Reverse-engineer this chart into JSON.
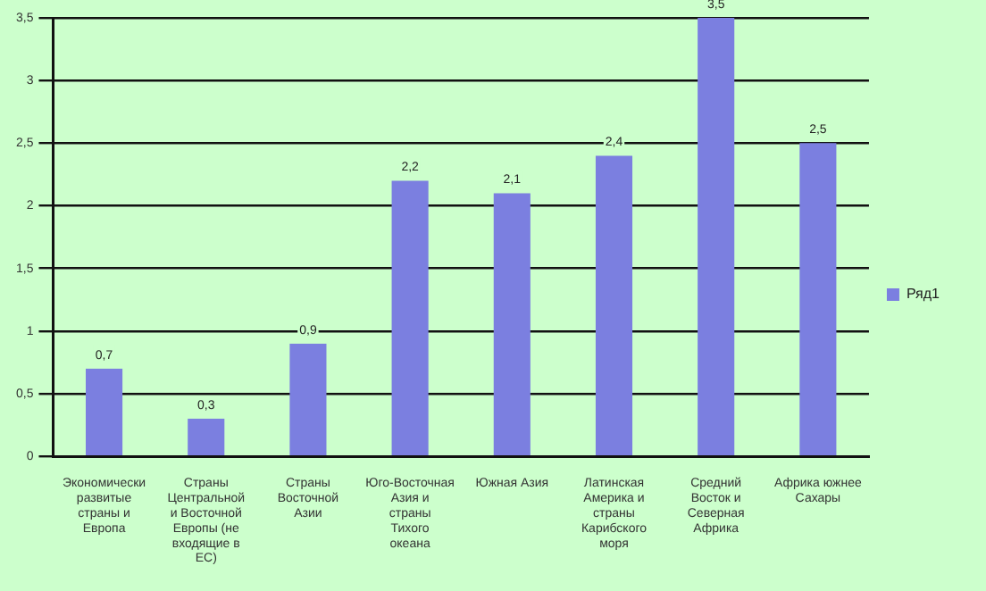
{
  "chart_data": {
    "type": "bar",
    "categories": [
      "Экономически развитые страны и Европа",
      "Страны Центральной и Восточной Европы (не входящие в ЕС)",
      "Страны Восточной Азии",
      "Юго-Восточная Азия и страны Тихого океана",
      "Южная Азия",
      "Латинская Америка и страны Карибского моря",
      "Средний Восток и Северная Африка",
      "Африка южнее Сахары"
    ],
    "series": [
      {
        "name": "Ряд1",
        "color": "#7b7fe0",
        "values": [
          0.7,
          0.3,
          0.9,
          2.2,
          2.1,
          2.4,
          3.5,
          2.5
        ],
        "value_labels": [
          "0,7",
          "0,3",
          "0,9",
          "2,2",
          "2,1",
          "2,4",
          "3,5",
          "2,5"
        ]
      }
    ],
    "ylim": [
      0,
      3.5
    ],
    "yticks": [
      0,
      {
        "value": 0.5,
        "label": "0,5"
      },
      1,
      {
        "value": 1.5,
        "label": "1,5"
      },
      2,
      {
        "value": 2.5,
        "label": "2,5"
      },
      3,
      {
        "value": 3.5,
        "label": "3,5"
      }
    ],
    "grid": "y",
    "legend": "right"
  }
}
